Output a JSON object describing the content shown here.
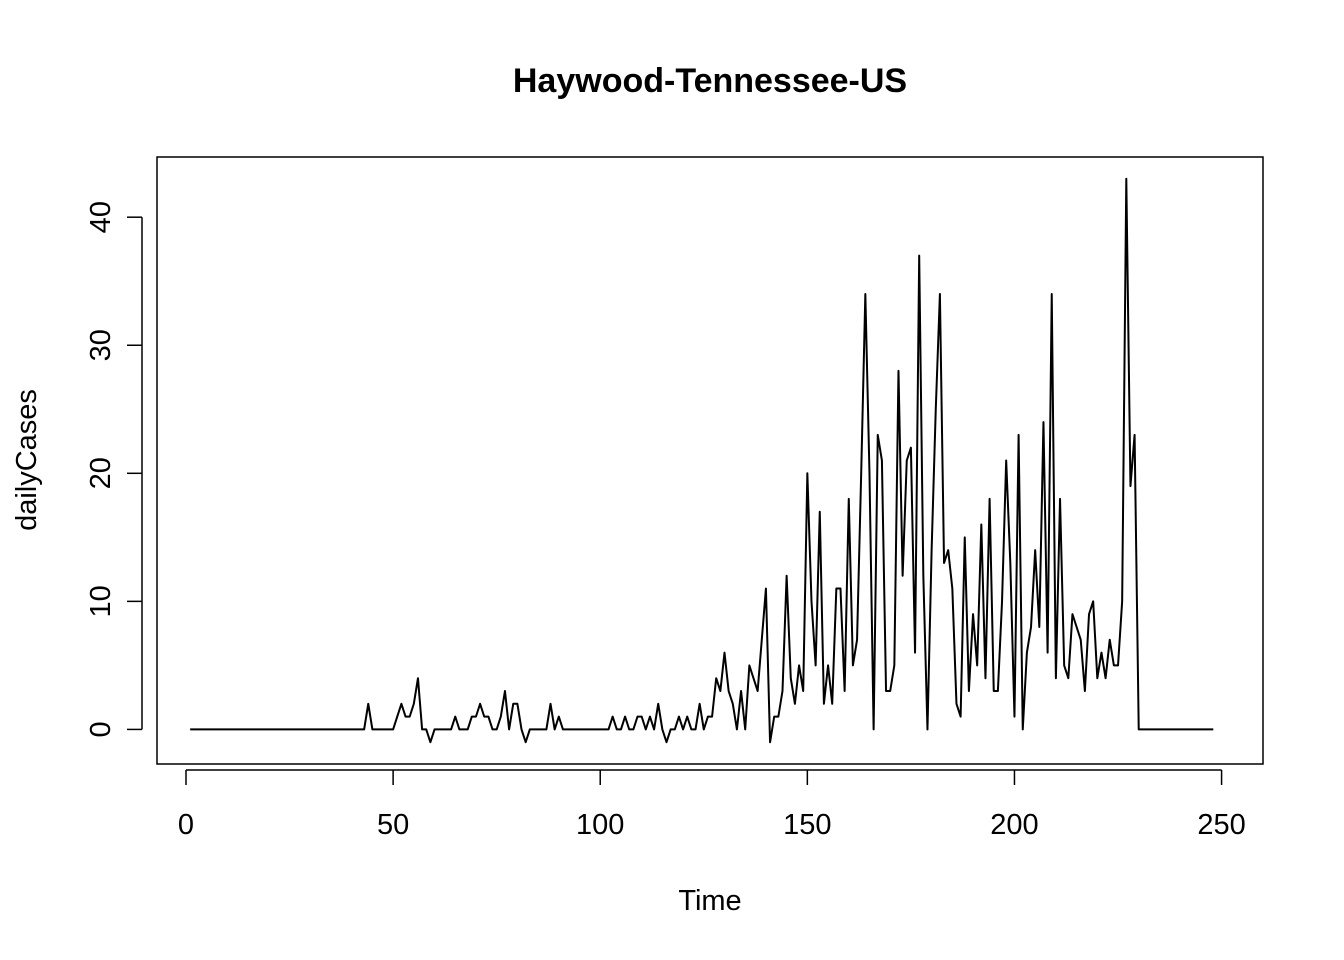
{
  "chart_data": {
    "type": "line",
    "title": "Haywood-Tennessee-US",
    "xlabel": "Time",
    "ylabel": "dailyCases",
    "xlim": [
      -7,
      260
    ],
    "ylim": [
      -2.7,
      44.7
    ],
    "xticks": [
      0,
      50,
      100,
      150,
      200,
      250
    ],
    "xtick_labels": [
      "0",
      "50",
      "100",
      "150",
      "200",
      "250"
    ],
    "yticks": [
      0,
      10,
      20,
      30,
      40
    ],
    "ytick_labels": [
      "0",
      "10",
      "20",
      "30",
      "40"
    ],
    "grid": false,
    "legend": "none",
    "line_color": "#000000",
    "x_start": 1,
    "series": [
      {
        "values": [
          0,
          0,
          0,
          0,
          0,
          0,
          0,
          0,
          0,
          0,
          0,
          0,
          0,
          0,
          0,
          0,
          0,
          0,
          0,
          0,
          0,
          0,
          0,
          0,
          0,
          0,
          0,
          0,
          0,
          0,
          0,
          0,
          0,
          0,
          0,
          0,
          0,
          0,
          0,
          0,
          0,
          0,
          0,
          2,
          0,
          0,
          0,
          0,
          0,
          0,
          1,
          2,
          1,
          1,
          2,
          4,
          0,
          0,
          -1,
          0,
          0,
          0,
          0,
          0,
          1,
          0,
          0,
          0,
          1,
          1,
          2,
          1,
          1,
          0,
          0,
          1,
          3,
          0,
          2,
          2,
          0,
          -1,
          0,
          0,
          0,
          0,
          0,
          2,
          0,
          1,
          0,
          0,
          0,
          0,
          0,
          0,
          0,
          0,
          0,
          0,
          0,
          0,
          1,
          0,
          0,
          1,
          0,
          0,
          1,
          1,
          0,
          1,
          0,
          2,
          0,
          -1,
          0,
          0,
          1,
          0,
          1,
          0,
          0,
          2,
          0,
          1,
          1,
          4,
          3,
          6,
          3,
          2,
          0,
          3,
          0,
          5,
          4,
          3,
          7,
          11,
          -1,
          1,
          1,
          3,
          12,
          4,
          2,
          5,
          3,
          20,
          10,
          5,
          17,
          2,
          5,
          2,
          11,
          11,
          3,
          18,
          5,
          7,
          20,
          34,
          20,
          0,
          23,
          21,
          3,
          3,
          5,
          28,
          12,
          21,
          22,
          6,
          37,
          12,
          0,
          14,
          25,
          34,
          13,
          14,
          11,
          2,
          1,
          15,
          3,
          9,
          5,
          16,
          4,
          18,
          3,
          3,
          10,
          21,
          13,
          1,
          23,
          0,
          6,
          8,
          14,
          8,
          24,
          6,
          34,
          4,
          18,
          5,
          4,
          9,
          8,
          7,
          3,
          9,
          10,
          4,
          6,
          4,
          7,
          5,
          5,
          10,
          43,
          19,
          23,
          0,
          0,
          0,
          0,
          0,
          0,
          0,
          0,
          0,
          0,
          0,
          0,
          0,
          0,
          0,
          0,
          0,
          0,
          0
        ]
      }
    ]
  }
}
